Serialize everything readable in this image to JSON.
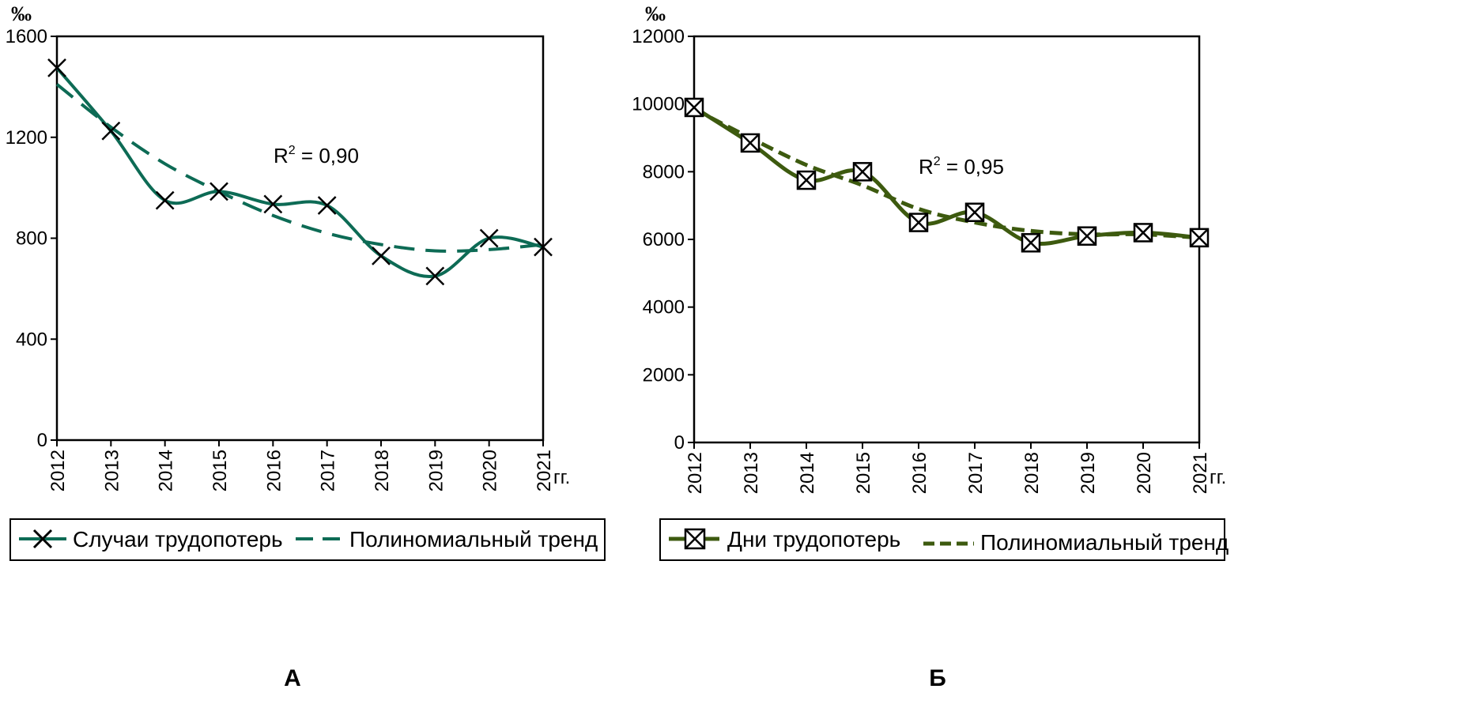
{
  "chart_data": [
    {
      "type": "line",
      "panel_label": "А",
      "unit_label": "‰",
      "x_unit_label": "гг.",
      "categories": [
        "2012",
        "2013",
        "2014",
        "2015",
        "2016",
        "2017",
        "2018",
        "2019",
        "2020",
        "2021"
      ],
      "ylim": [
        0,
        1600
      ],
      "yticks": [
        "0",
        "400",
        "800",
        "1200",
        "1600"
      ],
      "annotation": {
        "base": "R",
        "sup": "2",
        "rest": " = 0,90"
      },
      "legend_position": "bottom",
      "colors": {
        "series": "#0d6b55"
      },
      "series": [
        {
          "name": "Случаи трудопотерь",
          "style": "solid-x-marker",
          "values": [
            1475,
            1225,
            950,
            985,
            935,
            930,
            730,
            650,
            800,
            765
          ]
        },
        {
          "name": "Полиномиальный тренд",
          "style": "dashed",
          "values": [
            1410,
            1240,
            1095,
            985,
            890,
            820,
            775,
            750,
            755,
            775
          ]
        }
      ]
    },
    {
      "type": "line",
      "panel_label": "Б",
      "unit_label": "‰",
      "x_unit_label": "гг.",
      "categories": [
        "2012",
        "2013",
        "2014",
        "2015",
        "2016",
        "2017",
        "2018",
        "2019",
        "2020",
        "2021"
      ],
      "ylim": [
        0,
        12000
      ],
      "yticks": [
        "0",
        "2000",
        "4000",
        "6000",
        "8000",
        "10000",
        "12000"
      ],
      "annotation": {
        "base": "R",
        "sup": "2",
        "rest": " = 0,95"
      },
      "legend_position": "bottom",
      "colors": {
        "series": "#3d5a0f"
      },
      "series": [
        {
          "name": "Дни трудопотерь",
          "style": "solid-boxed-x-marker",
          "values": [
            9900,
            8850,
            7750,
            8000,
            6500,
            6800,
            5900,
            6100,
            6200,
            6050
          ]
        },
        {
          "name": "Полиномиальный тренд",
          "style": "dashed",
          "values": [
            9850,
            9000,
            8200,
            7600,
            6900,
            6500,
            6250,
            6150,
            6150,
            6050
          ]
        }
      ]
    }
  ]
}
